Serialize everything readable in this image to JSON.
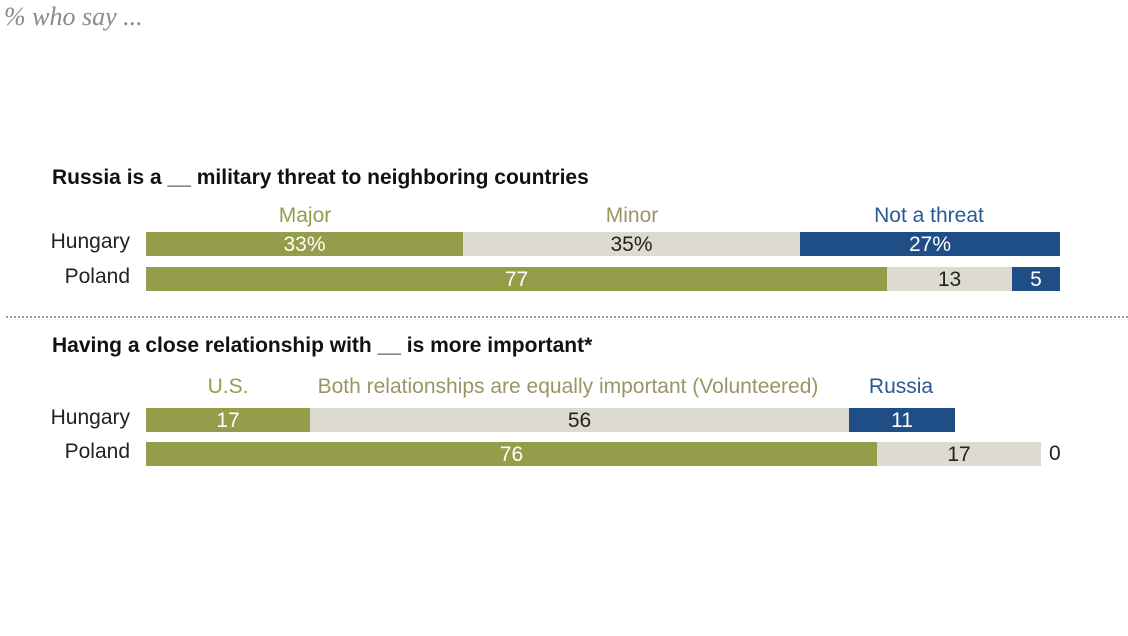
{
  "subtitle": "% who say ...",
  "colors": {
    "green": "#959d4a",
    "beige": "#dddbcf",
    "blue": "#1f4e87",
    "green_text": "#959d4a",
    "beige_text": "#9a9566",
    "blue_text": "#2a5a94",
    "dark_text": "#222222",
    "light_text": "#ffffff"
  },
  "chart_data": [
    {
      "type": "bar",
      "orientation": "horizontal",
      "stacked": true,
      "title": "Russia is a __ military threat to neighboring countries",
      "categories": [
        "Hungary",
        "Poland"
      ],
      "series": [
        {
          "name": "Major",
          "values": [
            33,
            77
          ],
          "labels": [
            "33%",
            "77"
          ],
          "color": "green"
        },
        {
          "name": "Minor",
          "values": [
            35,
            13
          ],
          "labels": [
            "35%",
            "13"
          ],
          "color": "beige"
        },
        {
          "name": "Not a threat",
          "values": [
            27,
            5
          ],
          "labels": [
            "27%",
            "5"
          ],
          "color": "blue"
        }
      ],
      "xlim": [
        0,
        100
      ]
    },
    {
      "type": "bar",
      "orientation": "horizontal",
      "stacked": true,
      "title": "Having a close relationship with __ is more important*",
      "categories": [
        "Hungary",
        "Poland"
      ],
      "series": [
        {
          "name": "U.S.",
          "values": [
            17,
            76
          ],
          "labels": [
            "17",
            "76"
          ],
          "color": "green"
        },
        {
          "name": "Both relationships are equally important (Volunteered)",
          "values": [
            56,
            17
          ],
          "labels": [
            "56",
            "17"
          ],
          "color": "beige"
        },
        {
          "name": "Russia",
          "values": [
            11,
            0
          ],
          "labels": [
            "11",
            "0"
          ],
          "color": "blue"
        }
      ],
      "xlim": [
        0,
        100
      ]
    }
  ]
}
